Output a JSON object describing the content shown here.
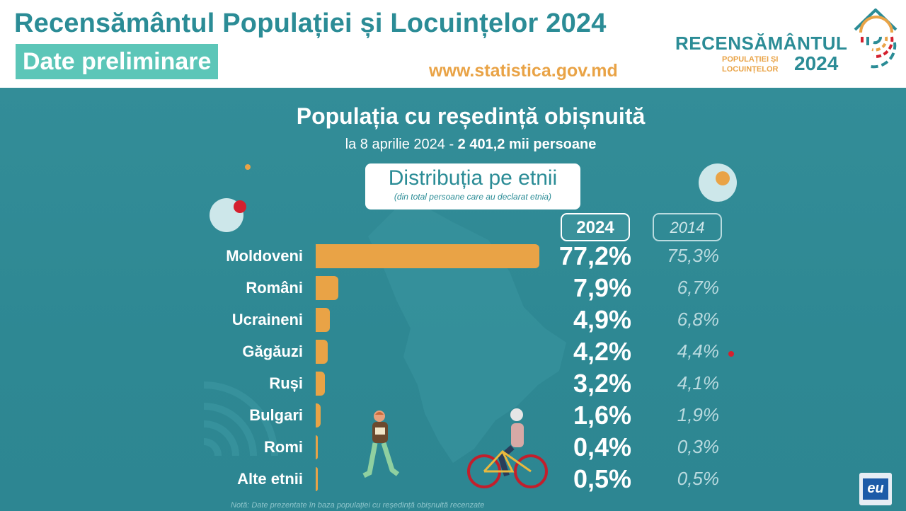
{
  "header": {
    "title": "Recensământul Populației și Locuințelor 2024",
    "badge": "Date preliminare",
    "website": "www.statistica.gov.md"
  },
  "logo": {
    "word": "RECENSĂMÂNTUL",
    "sub_line1": "POPULAȚIEI ȘI",
    "sub_line2": "LOCUINȚELOR",
    "year": "2024"
  },
  "panel": {
    "title": "Populația cu reședință obișnuită",
    "subtitle_prefix": "la 8 aprilie 2024 - ",
    "subtitle_bold": "2 401,2 mii persoane",
    "dist_title": "Distribuția pe etnii",
    "dist_note": "(din total persoane care au declarat etnia)",
    "year_current": "2024",
    "year_previous": "2014",
    "note": "Notă: Date prezentate în baza populației cu reședință obișnuită recenzate"
  },
  "colors": {
    "bar": "#e9a346",
    "panel_bg": "#2e8893",
    "title_teal": "#2b8c96",
    "badge_green": "#5cc6b8",
    "accent_red": "#d4202e"
  },
  "eu_badge": "eu",
  "chart_data": {
    "type": "bar",
    "orientation": "horizontal",
    "title": "Distribuția pe etnii",
    "categories": [
      "Moldoveni",
      "Români",
      "Ucraineni",
      "Găgăuzi",
      "Ruși",
      "Bulgari",
      "Romi",
      "Alte etnii"
    ],
    "series": [
      {
        "name": "2024",
        "values": [
          77.2,
          7.9,
          4.9,
          4.2,
          3.2,
          1.6,
          0.4,
          0.5
        ],
        "labels": [
          "77,2%",
          "7,9%",
          "4,9%",
          "4,2%",
          "3,2%",
          "1,6%",
          "0,4%",
          "0,5%"
        ]
      },
      {
        "name": "2014",
        "values": [
          75.3,
          6.7,
          6.8,
          4.4,
          4.1,
          1.9,
          0.3,
          0.5
        ],
        "labels": [
          "75,3%",
          "6,7%",
          "6,8%",
          "4,4%",
          "4,1%",
          "1,9%",
          "0,3%",
          "0,5%"
        ]
      }
    ],
    "xlim": [
      0,
      77.2
    ],
    "unit": "%",
    "grid": false,
    "legend": "top-right"
  }
}
